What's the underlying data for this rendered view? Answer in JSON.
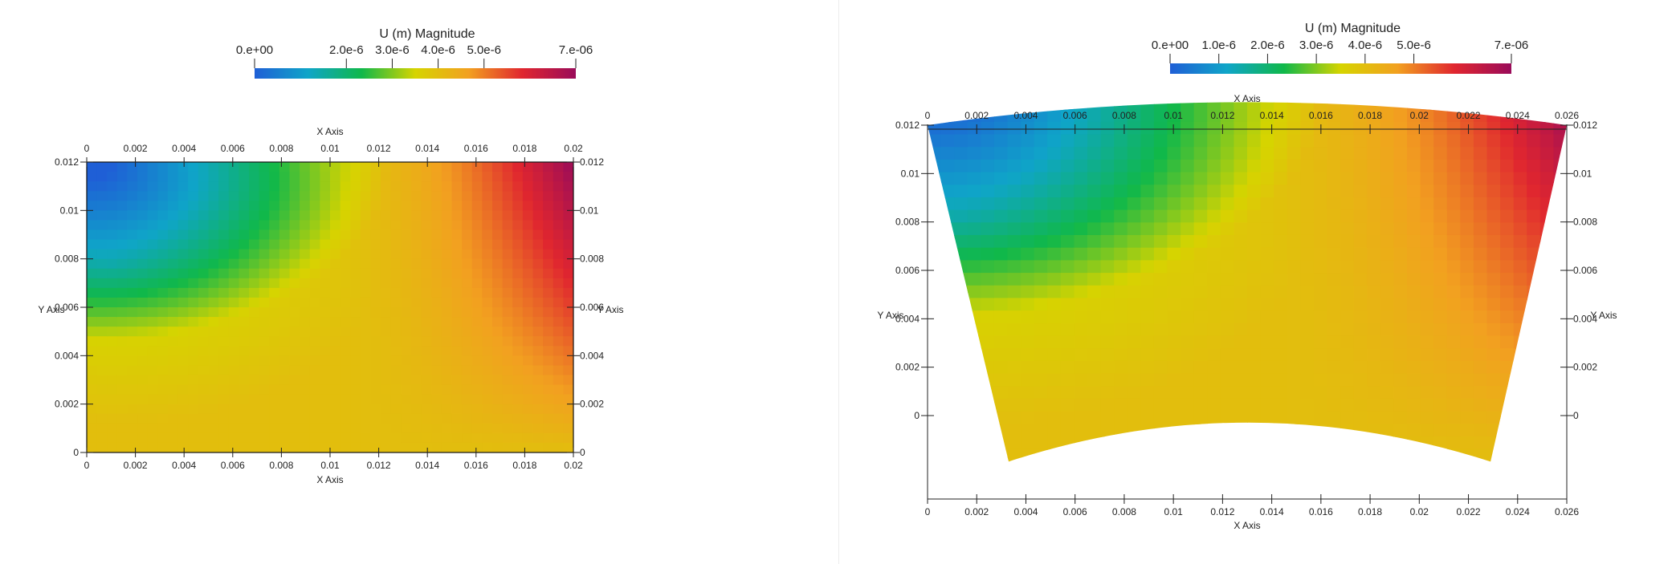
{
  "chart_data": [
    {
      "type": "heatmap",
      "field": "U (m) Magnitude",
      "colorbar": {
        "title": "U (m) Magnitude",
        "range": [
          0,
          7e-06
        ],
        "ticks": [
          {
            "value": 0,
            "label": "0.e+00"
          },
          {
            "value": 2e-06,
            "label": "2.0e-6"
          },
          {
            "value": 3e-06,
            "label": "3.0e-6"
          },
          {
            "value": 4e-06,
            "label": "4.0e-6"
          },
          {
            "value": 5e-06,
            "label": "5.0e-6"
          },
          {
            "value": 7e-06,
            "label": "7.e-06"
          }
        ],
        "colors": [
          "#1f5fd6",
          "#0fa5c8",
          "#10b84a",
          "#d6d400",
          "#f2a020",
          "#e0262f",
          "#9a0b5a"
        ]
      },
      "xlabel": "X Axis",
      "ylabel": "Y Axis",
      "xlim": [
        0,
        0.02
      ],
      "ylim": [
        0,
        0.012
      ],
      "xticks": [
        {
          "value": 0,
          "label": "0"
        },
        {
          "value": 0.002,
          "label": "0.002"
        },
        {
          "value": 0.004,
          "label": "0.004"
        },
        {
          "value": 0.006,
          "label": "0.006"
        },
        {
          "value": 0.008,
          "label": "0.008"
        },
        {
          "value": 0.01,
          "label": "0.01"
        },
        {
          "value": 0.012,
          "label": "0.012"
        },
        {
          "value": 0.014,
          "label": "0.014"
        },
        {
          "value": 0.016,
          "label": "0.016"
        },
        {
          "value": 0.018,
          "label": "0.018"
        },
        {
          "value": 0.02,
          "label": "0.02"
        }
      ],
      "yticks": [
        {
          "value": 0,
          "label": "0"
        },
        {
          "value": 0.002,
          "label": "0.002"
        },
        {
          "value": 0.004,
          "label": "0.004"
        },
        {
          "value": 0.006,
          "label": "0.006"
        },
        {
          "value": 0.008,
          "label": "0.008"
        },
        {
          "value": 0.01,
          "label": "0.01"
        },
        {
          "value": 0.012,
          "label": "0.012"
        }
      ],
      "corner_values": {
        "top_left": 0,
        "top_right": 7e-06,
        "bottom_left": 3.8e-06,
        "bottom_right": 4.2e-06
      }
    },
    {
      "type": "heatmap",
      "field": "U (m) Magnitude",
      "colorbar": {
        "title": "U (m) Magnitude",
        "range": [
          0,
          7e-06
        ],
        "ticks": [
          {
            "value": 0,
            "label": "0.e+00"
          },
          {
            "value": 1e-06,
            "label": "1.0e-6"
          },
          {
            "value": 2e-06,
            "label": "2.0e-6"
          },
          {
            "value": 3e-06,
            "label": "3.0e-6"
          },
          {
            "value": 4e-06,
            "label": "4.0e-6"
          },
          {
            "value": 5e-06,
            "label": "5.0e-6"
          },
          {
            "value": 7e-06,
            "label": "7.e-06"
          }
        ],
        "colors": [
          "#1f5fd6",
          "#0fa5c8",
          "#10b84a",
          "#d6d400",
          "#f2a020",
          "#e0262f",
          "#9a0b5a"
        ]
      },
      "xlabel": "X Axis",
      "ylabel": "Y Axis",
      "xlim": [
        0,
        0.026
      ],
      "ylim": [
        -0.0019,
        0.0133
      ],
      "xticks": [
        {
          "value": 0,
          "label": "0"
        },
        {
          "value": 0.002,
          "label": "0.002"
        },
        {
          "value": 0.004,
          "label": "0.004"
        },
        {
          "value": 0.006,
          "label": "0.006"
        },
        {
          "value": 0.008,
          "label": "0.008"
        },
        {
          "value": 0.01,
          "label": "0.01"
        },
        {
          "value": 0.012,
          "label": "0.012"
        },
        {
          "value": 0.014,
          "label": "0.014"
        },
        {
          "value": 0.016,
          "label": "0.016"
        },
        {
          "value": 0.018,
          "label": "0.018"
        },
        {
          "value": 0.02,
          "label": "0.02"
        },
        {
          "value": 0.022,
          "label": "0.022"
        },
        {
          "value": 0.024,
          "label": "0.024"
        },
        {
          "value": 0.026,
          "label": "0.026"
        }
      ],
      "yticks": [
        {
          "value": 0,
          "label": "0"
        },
        {
          "value": 0.002,
          "label": "0.002"
        },
        {
          "value": 0.004,
          "label": "0.004"
        },
        {
          "value": 0.006,
          "label": "0.006"
        },
        {
          "value": 0.008,
          "label": "0.008"
        },
        {
          "value": 0.01,
          "label": "0.01"
        },
        {
          "value": 0.012,
          "label": "0.012"
        }
      ],
      "domain_outline": {
        "top_left": [
          0,
          0.012
        ],
        "top_mid": [
          0.013,
          0.0133
        ],
        "top_right": [
          0.026,
          0.012
        ],
        "bottom_left": [
          0.0033,
          -0.0019
        ],
        "bottom_mid": [
          0.013,
          -0.0005
        ],
        "bottom_right": [
          0.0229,
          -0.0019
        ]
      },
      "corner_values": {
        "top_left": 0,
        "top_right": 7e-06,
        "bottom_left": 4e-06,
        "bottom_right": 4.5e-06
      }
    }
  ]
}
